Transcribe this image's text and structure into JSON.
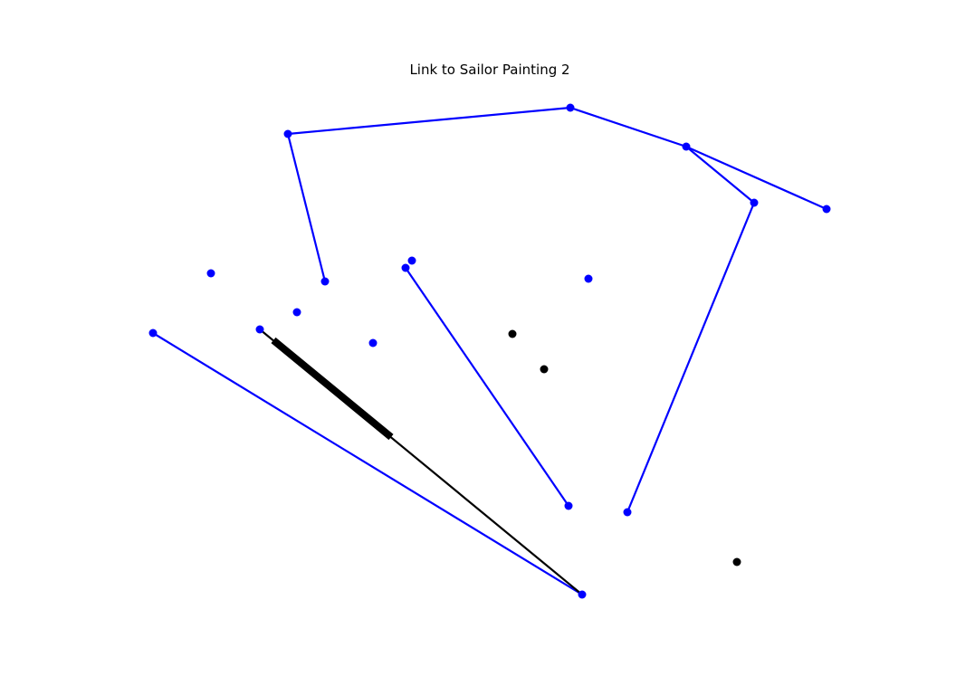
{
  "title": "Link to Sailor Painting 2",
  "colors": {
    "blue": "#0000ff",
    "black": "#000000",
    "background": "#ffffff"
  },
  "diagram": {
    "nodes": [
      {
        "id": "n1",
        "color": "blue"
      },
      {
        "id": "n2",
        "color": "blue"
      },
      {
        "id": "n3",
        "color": "blue"
      },
      {
        "id": "n4",
        "color": "blue"
      },
      {
        "id": "n5",
        "color": "blue"
      },
      {
        "id": "n6",
        "color": "blue"
      },
      {
        "id": "n7",
        "color": "blue"
      },
      {
        "id": "n8",
        "color": "blue"
      },
      {
        "id": "n9",
        "color": "blue"
      },
      {
        "id": "n10",
        "color": "blue"
      },
      {
        "id": "n11",
        "color": "blue"
      },
      {
        "id": "n12",
        "color": "blue"
      },
      {
        "id": "n13",
        "color": "blue"
      },
      {
        "id": "n14",
        "color": "blue"
      },
      {
        "id": "n15",
        "color": "blue"
      },
      {
        "id": "n16",
        "color": "blue"
      },
      {
        "id": "n17",
        "color": "blue"
      },
      {
        "id": "n18",
        "color": "black"
      },
      {
        "id": "n19",
        "color": "black"
      },
      {
        "id": "n20",
        "color": "black"
      }
    ],
    "edges": [
      {
        "from": "n1",
        "to": "n2",
        "color": "blue"
      },
      {
        "from": "n2",
        "to": "n3",
        "color": "blue"
      },
      {
        "from": "n3",
        "to": "n4",
        "color": "blue"
      },
      {
        "from": "n3",
        "to": "n5",
        "color": "blue"
      },
      {
        "from": "n1",
        "to": "n6",
        "color": "blue"
      },
      {
        "from": "n5",
        "to": "n7",
        "color": "blue"
      },
      {
        "from": "n8",
        "to": "n9",
        "color": "blue"
      },
      {
        "from": "n10",
        "to": "n11",
        "color": "blue"
      },
      {
        "from": "n12",
        "to": "n11",
        "color": "black"
      }
    ],
    "emphasized_segments": [
      {
        "on_edge": "n12-n11",
        "color": "black"
      }
    ]
  }
}
